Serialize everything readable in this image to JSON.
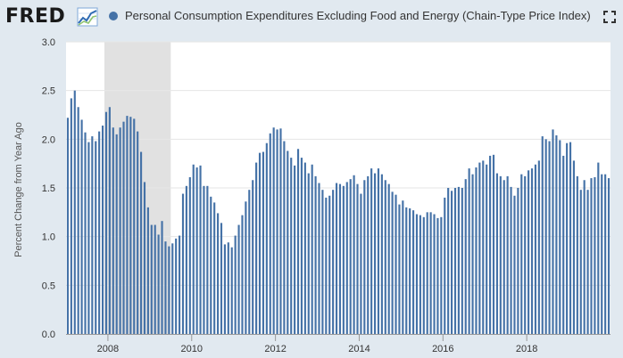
{
  "header": {
    "logo": "FRED",
    "legend_label": "Personal Consumption Expenditures Excluding Food and Energy (Chain-Type Price Index)",
    "series_color": "#4572a7",
    "recession_color": "#e1e1e1"
  },
  "chart_data": {
    "type": "bar",
    "title": "Personal Consumption Expenditures Excluding Food and Energy (Chain-Type Price Index)",
    "xlabel": "",
    "ylabel": "Percent Change from Year Ago",
    "ylim": [
      0,
      3.0
    ],
    "yticks": [
      "0.0",
      "0.5",
      "1.0",
      "1.5",
      "2.0",
      "2.5",
      "3.0"
    ],
    "xticks": [
      "2008",
      "2010",
      "2012",
      "2014",
      "2016",
      "2018"
    ],
    "x_start": "2007-01",
    "x_end": "2019-12",
    "frequency": "monthly",
    "recession": {
      "start": "2007-12",
      "end": "2009-06"
    },
    "grid": true,
    "series": [
      {
        "name": "Personal Consumption Expenditures Excluding Food and Energy (Chain-Type Price Index)",
        "values": [
          2.22,
          2.42,
          2.5,
          2.33,
          2.2,
          2.07,
          1.97,
          2.03,
          1.98,
          2.08,
          2.14,
          2.28,
          2.33,
          2.12,
          2.05,
          2.12,
          2.18,
          2.24,
          2.23,
          2.21,
          2.08,
          1.87,
          1.56,
          1.3,
          1.12,
          1.12,
          1.02,
          1.16,
          0.95,
          0.9,
          0.93,
          0.98,
          1.01,
          1.44,
          1.52,
          1.61,
          1.74,
          1.71,
          1.73,
          1.52,
          1.52,
          1.41,
          1.35,
          1.24,
          1.14,
          0.92,
          0.94,
          0.89,
          1.01,
          1.12,
          1.22,
          1.36,
          1.48,
          1.58,
          1.76,
          1.86,
          1.87,
          1.96,
          2.06,
          2.12,
          2.1,
          2.11,
          1.98,
          1.88,
          1.81,
          1.73,
          1.9,
          1.81,
          1.76,
          1.65,
          1.74,
          1.62,
          1.55,
          1.48,
          1.4,
          1.42,
          1.48,
          1.55,
          1.54,
          1.52,
          1.56,
          1.59,
          1.63,
          1.54,
          1.44,
          1.58,
          1.62,
          1.7,
          1.65,
          1.7,
          1.64,
          1.58,
          1.54,
          1.46,
          1.43,
          1.33,
          1.37,
          1.3,
          1.29,
          1.27,
          1.23,
          1.22,
          1.2,
          1.25,
          1.25,
          1.23,
          1.19,
          1.2,
          1.4,
          1.5,
          1.47,
          1.5,
          1.51,
          1.5,
          1.59,
          1.7,
          1.64,
          1.71,
          1.76,
          1.78,
          1.74,
          1.83,
          1.84,
          1.65,
          1.62,
          1.58,
          1.62,
          1.51,
          1.42,
          1.5,
          1.64,
          1.62,
          1.68,
          1.7,
          1.74,
          1.78,
          2.03,
          2.0,
          1.98,
          2.1,
          2.04,
          1.99,
          1.83,
          1.96,
          1.97,
          1.78,
          1.62,
          1.48,
          1.58,
          1.48,
          1.6,
          1.61,
          1.76,
          1.64,
          1.64,
          1.6
        ]
      }
    ]
  }
}
